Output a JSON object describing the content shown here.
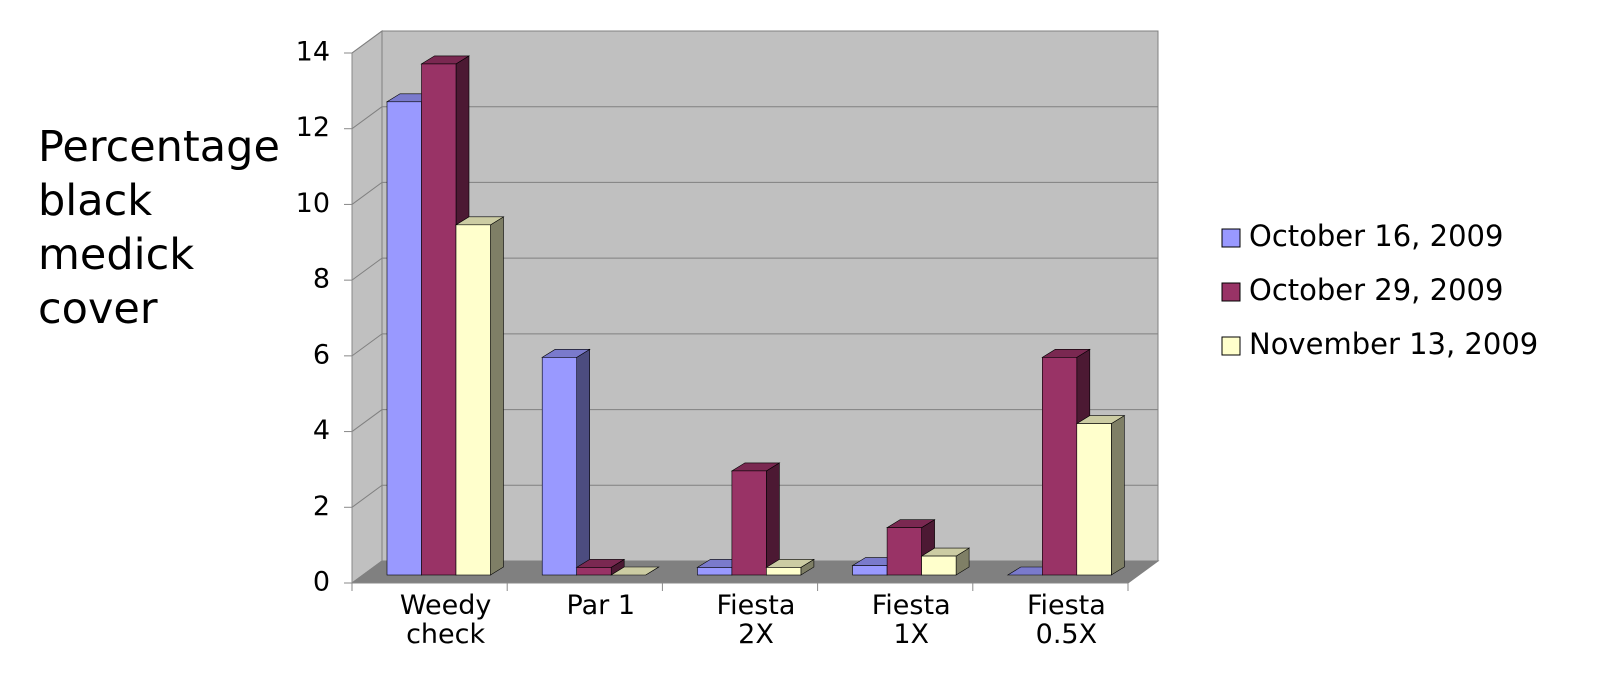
{
  "chart_data": {
    "type": "bar3d",
    "y_label": "Percentage black medick cover",
    "categories": [
      "Weedy check",
      "Par 1",
      "Fiesta 2X",
      "Fiesta 1X",
      "Fiesta 0.5X"
    ],
    "series": [
      {
        "name": "October 16, 2009",
        "color": "#9999ff",
        "values": [
          12.5,
          5.75,
          0.2,
          0.25,
          0
        ]
      },
      {
        "name": "October 29, 2009",
        "color": "#993366",
        "values": [
          13.5,
          0.2,
          2.75,
          1.25,
          5.75
        ]
      },
      {
        "name": "November 13, 2009",
        "color": "#ffffcc",
        "values": [
          9.25,
          0,
          0.2,
          0.5,
          4.0
        ]
      }
    ],
    "ylim": [
      0,
      14
    ],
    "yticks": [
      0,
      2,
      4,
      6,
      8,
      10,
      12,
      14
    ],
    "grid": true,
    "legend": "right"
  }
}
